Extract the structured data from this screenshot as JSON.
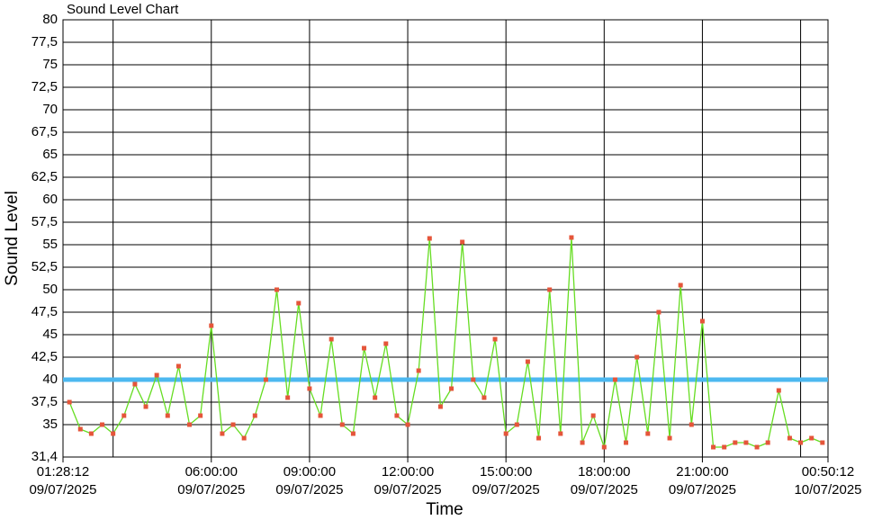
{
  "chart_data": {
    "type": "line",
    "title": "Sound Level Chart",
    "x_label": "Time",
    "y_label": "Sound Level",
    "x": [
      "2025-07-09T01:40:00",
      "2025-07-09T02:00:00",
      "2025-07-09T02:20:00",
      "2025-07-09T02:40:00",
      "2025-07-09T03:00:00",
      "2025-07-09T03:20:00",
      "2025-07-09T03:40:00",
      "2025-07-09T04:00:00",
      "2025-07-09T04:20:00",
      "2025-07-09T04:40:00",
      "2025-07-09T05:00:00",
      "2025-07-09T05:20:00",
      "2025-07-09T05:40:00",
      "2025-07-09T06:00:00",
      "2025-07-09T06:20:00",
      "2025-07-09T06:40:00",
      "2025-07-09T07:00:00",
      "2025-07-09T07:20:00",
      "2025-07-09T07:40:00",
      "2025-07-09T08:00:00",
      "2025-07-09T08:20:00",
      "2025-07-09T08:40:00",
      "2025-07-09T09:00:00",
      "2025-07-09T09:20:00",
      "2025-07-09T09:40:00",
      "2025-07-09T10:00:00",
      "2025-07-09T10:20:00",
      "2025-07-09T10:40:00",
      "2025-07-09T11:00:00",
      "2025-07-09T11:20:00",
      "2025-07-09T11:40:00",
      "2025-07-09T12:00:00",
      "2025-07-09T12:20:00",
      "2025-07-09T12:40:00",
      "2025-07-09T13:00:00",
      "2025-07-09T13:20:00",
      "2025-07-09T13:40:00",
      "2025-07-09T14:00:00",
      "2025-07-09T14:20:00",
      "2025-07-09T14:40:00",
      "2025-07-09T15:00:00",
      "2025-07-09T15:20:00",
      "2025-07-09T15:40:00",
      "2025-07-09T16:00:00",
      "2025-07-09T16:20:00",
      "2025-07-09T16:40:00",
      "2025-07-09T17:00:00",
      "2025-07-09T17:20:00",
      "2025-07-09T17:40:00",
      "2025-07-09T18:00:00",
      "2025-07-09T18:20:00",
      "2025-07-09T18:40:00",
      "2025-07-09T19:00:00",
      "2025-07-09T19:20:00",
      "2025-07-09T19:40:00",
      "2025-07-09T20:00:00",
      "2025-07-09T20:20:00",
      "2025-07-09T20:40:00",
      "2025-07-09T21:00:00",
      "2025-07-09T21:20:00",
      "2025-07-09T21:40:00",
      "2025-07-09T22:00:00",
      "2025-07-09T22:20:00",
      "2025-07-09T22:40:00",
      "2025-07-09T23:00:00",
      "2025-07-09T23:20:00",
      "2025-07-09T23:40:00",
      "2025-07-10T00:00:00",
      "2025-07-10T00:20:00",
      "2025-07-10T00:40:00"
    ],
    "series": [
      {
        "name": "Sound Level",
        "color": "#66dd22",
        "marker_color": "#e5553a",
        "values": [
          37.5,
          34.5,
          34,
          35,
          34,
          36,
          39.5,
          37,
          40.5,
          36,
          41.5,
          35,
          36,
          46,
          34,
          35,
          33.5,
          36,
          40,
          50,
          38,
          48.5,
          39,
          36,
          44.5,
          35,
          34,
          43.5,
          38,
          44,
          36,
          35,
          41,
          55.7,
          37,
          39,
          55.3,
          40,
          38,
          44.5,
          34,
          35,
          42,
          33.5,
          50,
          34,
          55.8,
          33,
          36,
          32.5,
          40,
          33,
          42.5,
          34,
          47.5,
          33.5,
          50.5,
          35,
          46.5,
          32.5,
          32.5,
          33,
          33,
          32.5,
          33,
          38.8,
          33.5,
          33,
          33.5,
          33
        ]
      }
    ],
    "threshold": 40,
    "threshold_color": "#4db8f0",
    "xlim": [
      "2025-07-09T01:28:12",
      "2025-07-10T00:50:12"
    ],
    "xticks": [
      {
        "value": "2025-07-09T01:28:12",
        "label": [
          "01:28:12",
          "09/07/2025"
        ]
      },
      {
        "value": "2025-07-09T06:00:00",
        "label": [
          "06:00:00",
          "09/07/2025"
        ]
      },
      {
        "value": "2025-07-09T09:00:00",
        "label": [
          "09:00:00",
          "09/07/2025"
        ]
      },
      {
        "value": "2025-07-09T12:00:00",
        "label": [
          "12:00:00",
          "09/07/2025"
        ]
      },
      {
        "value": "2025-07-09T15:00:00",
        "label": [
          "15:00:00",
          "09/07/2025"
        ]
      },
      {
        "value": "2025-07-09T18:00:00",
        "label": [
          "18:00:00",
          "09/07/2025"
        ]
      },
      {
        "value": "2025-07-09T21:00:00",
        "label": [
          "21:00:00",
          "09/07/2025"
        ]
      },
      {
        "value": "2025-07-10T00:50:12",
        "label": [
          "00:50:12",
          "10/07/2025"
        ]
      }
    ],
    "xgrid": [
      "2025-07-09T03:00:00",
      "2025-07-09T06:00:00",
      "2025-07-09T09:00:00",
      "2025-07-09T12:00:00",
      "2025-07-09T15:00:00",
      "2025-07-09T18:00:00",
      "2025-07-09T21:00:00",
      "2025-07-10T00:00:00"
    ],
    "ylim": [
      31.4,
      80
    ],
    "yticks": [
      {
        "value": 31.4,
        "label": "31,4"
      },
      35,
      {
        "value": 37.5,
        "label": "37,5"
      },
      40,
      {
        "value": 42.5,
        "label": "42,5"
      },
      45,
      {
        "value": 47.5,
        "label": "47,5"
      },
      50,
      {
        "value": 52.5,
        "label": "52,5"
      },
      55,
      {
        "value": 57.5,
        "label": "57,5"
      },
      60,
      {
        "value": 62.5,
        "label": "62,5"
      },
      65,
      {
        "value": 67.5,
        "label": "67,5"
      },
      70,
      {
        "value": 72.5,
        "label": "72,5"
      },
      75,
      {
        "value": 77.5,
        "label": "77,5"
      },
      80
    ],
    "grid": true
  }
}
